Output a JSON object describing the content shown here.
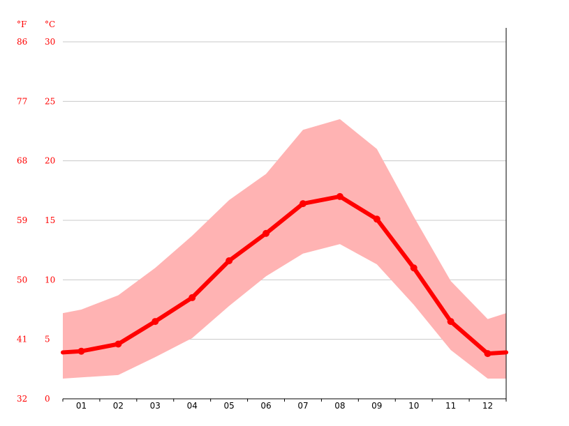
{
  "chart_data": {
    "type": "line",
    "title": "",
    "xlabel": "",
    "ylabel": "",
    "unit_labels": {
      "fahrenheit": "°F",
      "celsius": "°C"
    },
    "categories": [
      "01",
      "02",
      "03",
      "04",
      "05",
      "06",
      "07",
      "08",
      "09",
      "10",
      "11",
      "12"
    ],
    "y_ticks_celsius": [
      "0",
      "5",
      "10",
      "15",
      "20",
      "25",
      "30"
    ],
    "y_ticks_fahrenheit": [
      "32",
      "41",
      "50",
      "59",
      "68",
      "77",
      "86"
    ],
    "ylim": [
      0,
      30
    ],
    "grid": true,
    "legend": "none",
    "series": [
      {
        "role": "mean",
        "color": "#ff0000",
        "values": [
          4.0,
          4.6,
          6.5,
          8.5,
          11.6,
          13.9,
          16.4,
          17.0,
          15.1,
          11.0,
          6.5,
          3.8
        ]
      },
      {
        "role": "max",
        "color": "#ffb3b3",
        "values": [
          7.5,
          8.7,
          11.0,
          13.7,
          16.7,
          18.9,
          22.6,
          23.5,
          21.0,
          15.3,
          9.9,
          6.7
        ]
      },
      {
        "role": "min",
        "color": "#ffb3b3",
        "values": [
          1.8,
          2.0,
          3.5,
          5.1,
          7.8,
          10.3,
          12.2,
          13.0,
          11.3,
          7.9,
          4.1,
          1.7
        ]
      }
    ],
    "edge_values": {
      "left": {
        "mean": 3.9,
        "max": 7.2,
        "min": 1.7
      },
      "right": {
        "mean": 3.9,
        "max": 7.2,
        "min": 1.7
      }
    }
  }
}
